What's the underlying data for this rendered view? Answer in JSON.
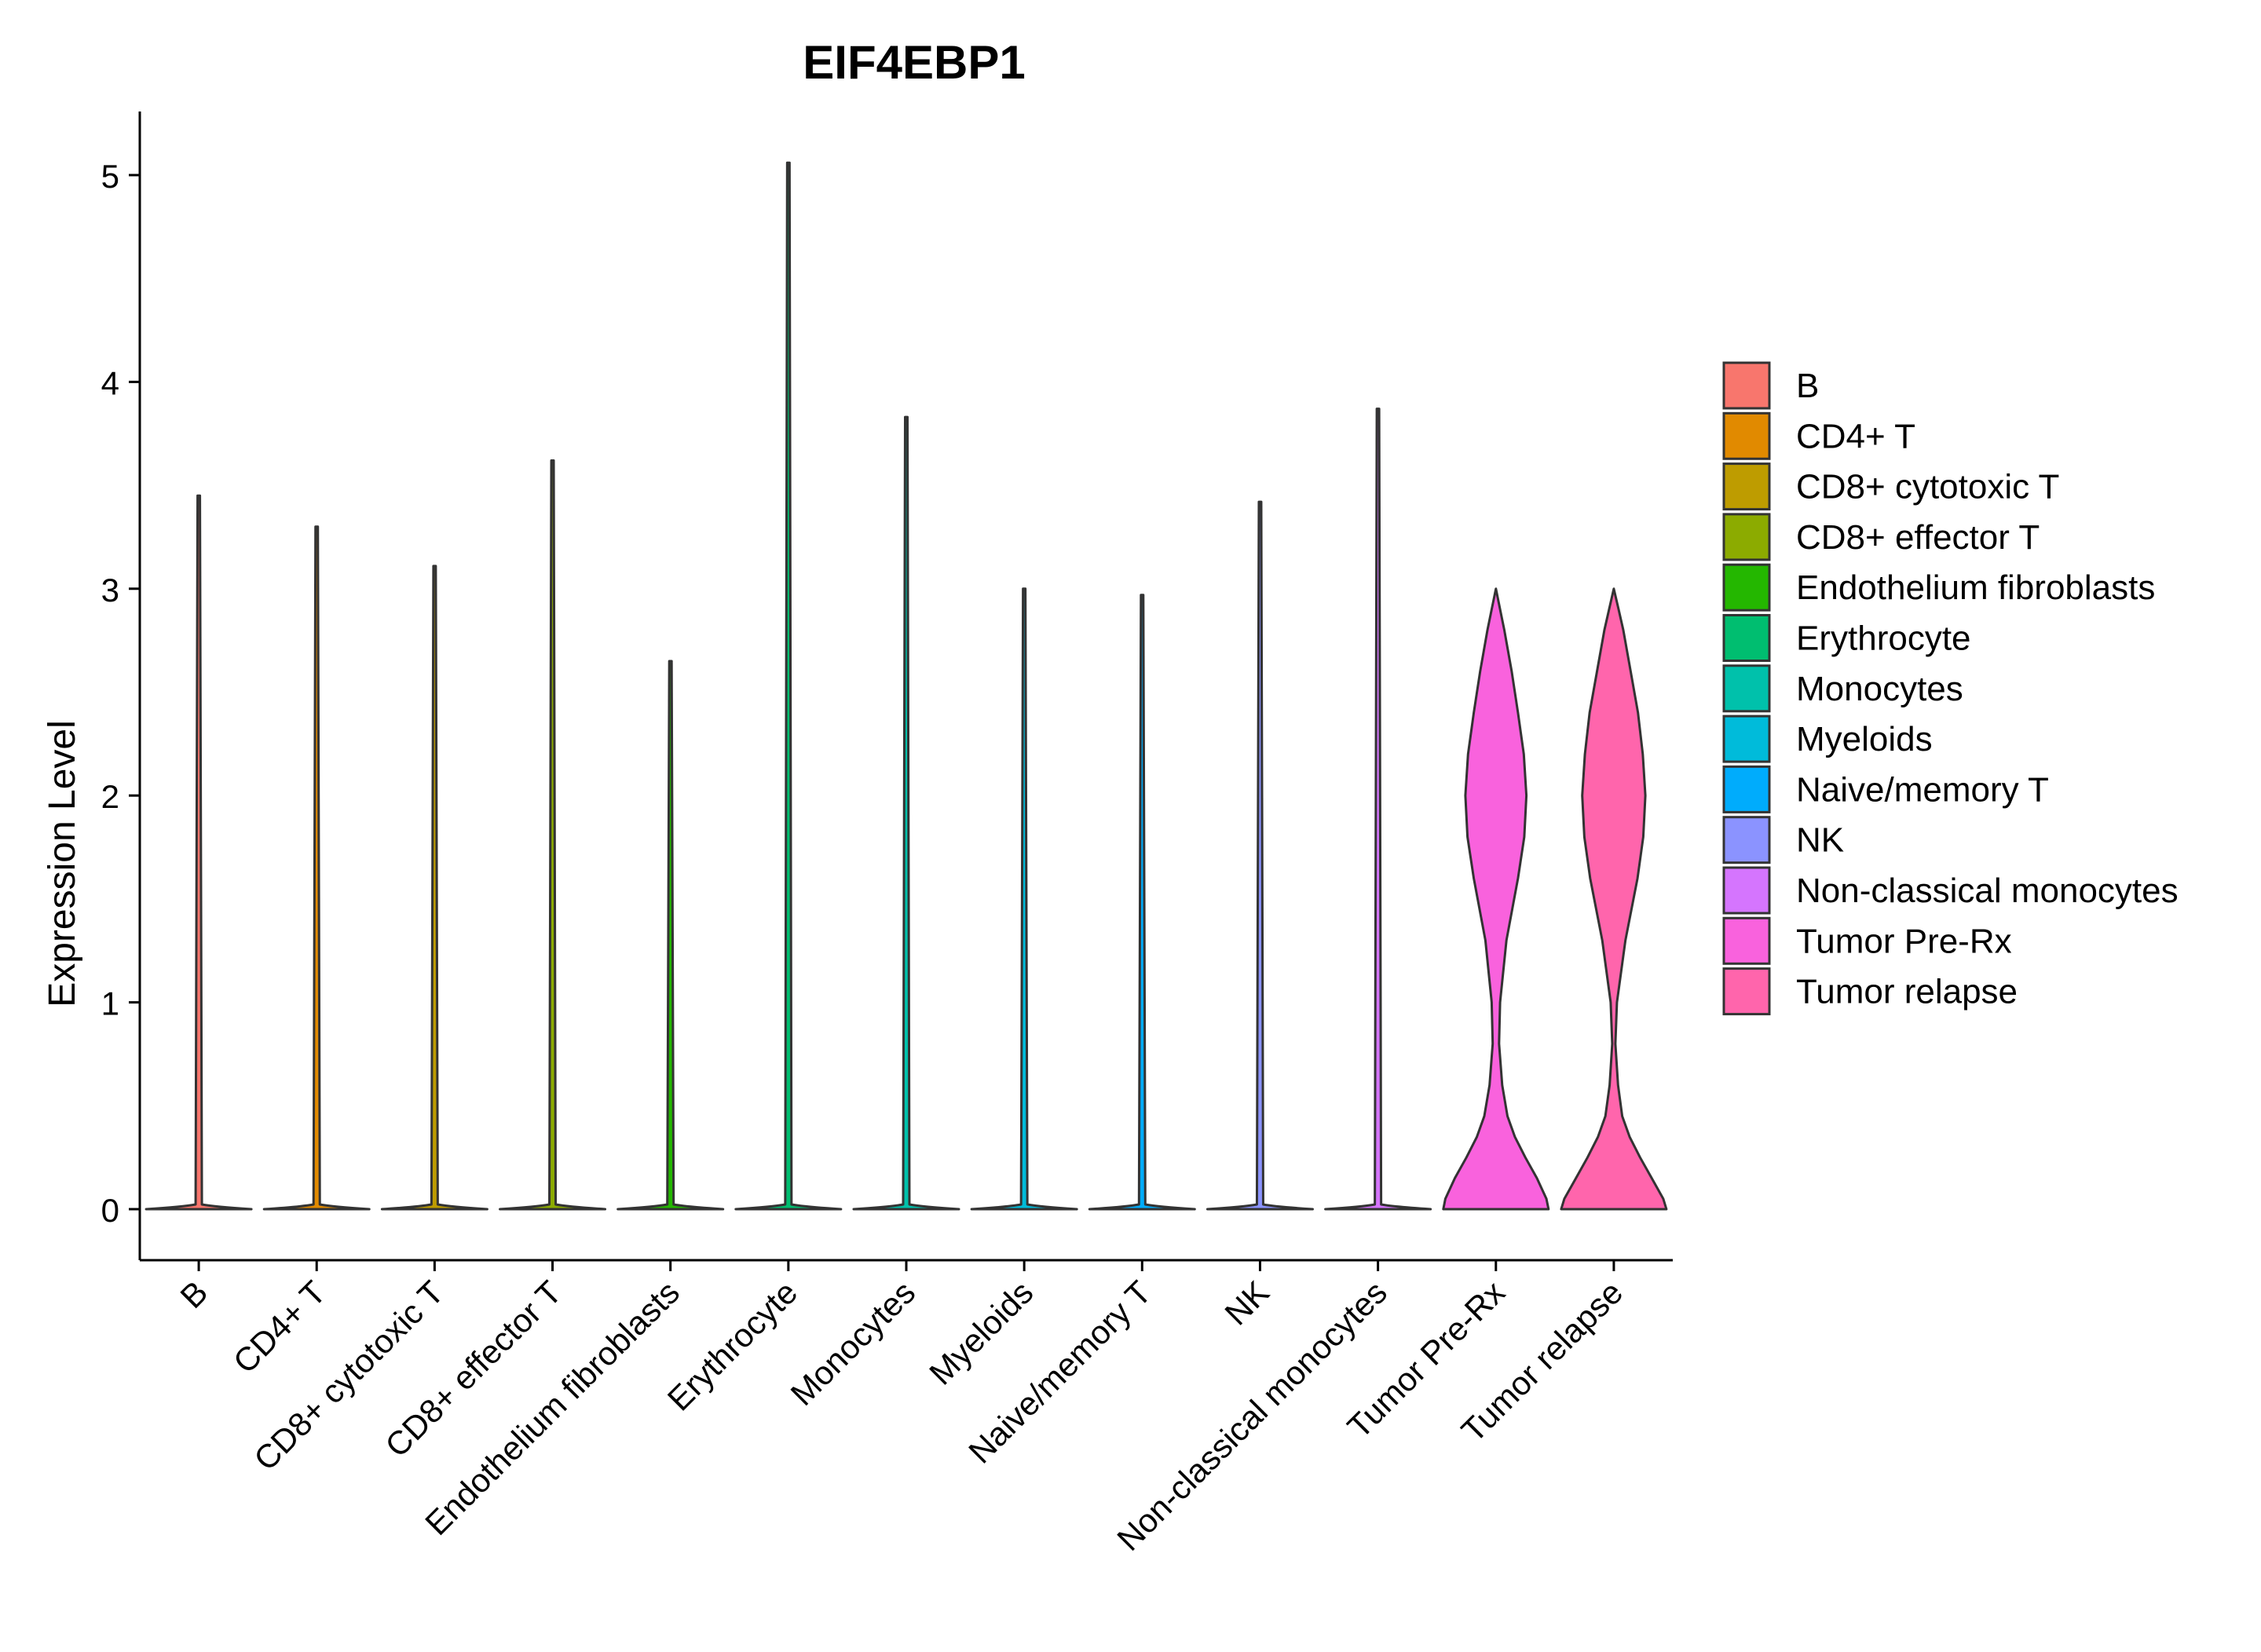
{
  "chart_data": {
    "type": "violin",
    "title": "EIF4EBP1",
    "xlabel": "",
    "ylabel": "Expression Level",
    "ylim": [
      -0.25,
      5.3
    ],
    "yticks": [
      0,
      1,
      2,
      3,
      4,
      5
    ],
    "grid": false,
    "legend_position": "right",
    "categories": [
      "B",
      "CD4+ T",
      "CD8+ cytotoxic T",
      "CD8+ effector T",
      "Endothelium fibroblasts",
      "Erythrocyte",
      "Monocytes",
      "Myeloids",
      "Naive/memory T",
      "NK",
      "Non-classical monocytes",
      "Tumor Pre-Rx",
      "Tumor relapse"
    ],
    "colors": [
      "#F8766D",
      "#E18A00",
      "#BE9C00",
      "#8CAB00",
      "#24B700",
      "#00BE70",
      "#00C1AB",
      "#00BBDA",
      "#00ACFC",
      "#8B93FF",
      "#D575FE",
      "#F962DD",
      "#FF65AC"
    ],
    "max_values": [
      3.45,
      3.3,
      3.11,
      3.62,
      2.65,
      5.06,
      3.83,
      3.0,
      2.97,
      3.42,
      3.87,
      3.0,
      3.0
    ],
    "violin_profiles": [
      {
        "name": "Tumor Pre-Rx",
        "y": [
          0,
          0.05,
          0.15,
          0.25,
          0.35,
          0.45,
          0.6,
          0.8,
          1.0,
          1.3,
          1.6,
          1.8,
          2.0,
          2.2,
          2.4,
          2.6,
          2.8,
          2.9,
          3.0
        ],
        "density": [
          1.0,
          0.96,
          0.78,
          0.56,
          0.36,
          0.22,
          0.12,
          0.06,
          0.08,
          0.2,
          0.42,
          0.54,
          0.58,
          0.53,
          0.42,
          0.3,
          0.16,
          0.08,
          0.0
        ]
      },
      {
        "name": "Tumor relapse",
        "y": [
          0,
          0.05,
          0.15,
          0.25,
          0.35,
          0.45,
          0.6,
          0.8,
          1.0,
          1.3,
          1.6,
          1.8,
          2.0,
          2.2,
          2.4,
          2.6,
          2.8,
          2.9,
          3.0
        ],
        "density": [
          1.0,
          0.94,
          0.72,
          0.5,
          0.3,
          0.16,
          0.08,
          0.03,
          0.06,
          0.22,
          0.45,
          0.56,
          0.6,
          0.55,
          0.46,
          0.32,
          0.18,
          0.09,
          0.0
        ]
      }
    ]
  }
}
